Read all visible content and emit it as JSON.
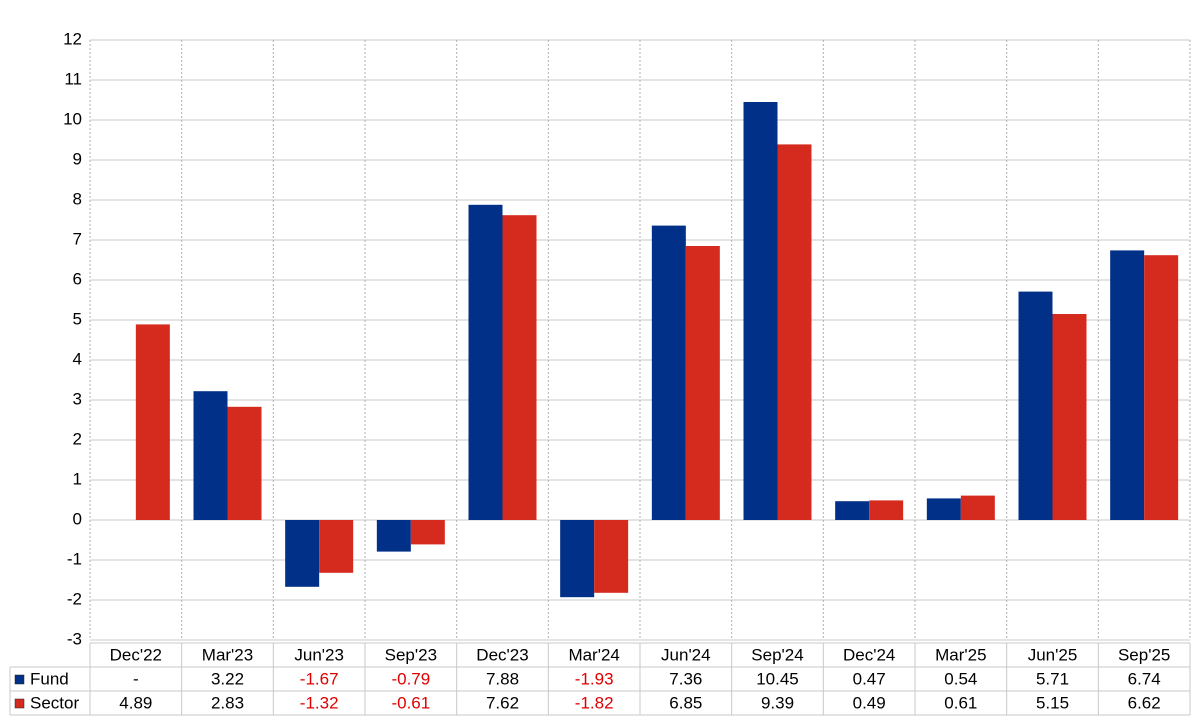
{
  "chart_data": {
    "type": "bar",
    "categories": [
      "Dec'22",
      "Mar'23",
      "Jun'23",
      "Sep'23",
      "Dec'23",
      "Mar'24",
      "Jun'24",
      "Sep'24",
      "Dec'24",
      "Mar'25",
      "Jun'25",
      "Sep'25"
    ],
    "series": [
      {
        "name": "Fund",
        "color": "#003087",
        "values": [
          null,
          3.22,
          -1.67,
          -0.79,
          7.88,
          -1.93,
          7.36,
          10.45,
          0.47,
          0.54,
          5.71,
          6.74
        ],
        "value_labels": [
          "-",
          "3.22",
          "-1.67",
          "-0.79",
          "7.88",
          "-1.93",
          "7.36",
          "10.45",
          "0.47",
          "0.54",
          "5.71",
          "6.74"
        ]
      },
      {
        "name": "Sector",
        "color": "#d52b1e",
        "values": [
          4.89,
          2.83,
          -1.32,
          -0.61,
          7.62,
          -1.82,
          6.85,
          9.39,
          0.49,
          0.61,
          5.15,
          6.62
        ],
        "value_labels": [
          "4.89",
          "2.83",
          "-1.32",
          "-0.61",
          "7.62",
          "-1.82",
          "6.85",
          "9.39",
          "0.49",
          "0.61",
          "5.15",
          "6.62"
        ]
      }
    ],
    "ylim": [
      -3,
      12
    ],
    "yticks": [
      -3,
      -2,
      -1,
      0,
      1,
      2,
      3,
      4,
      5,
      6,
      7,
      8,
      9,
      10,
      11,
      12
    ],
    "grid": true
  }
}
